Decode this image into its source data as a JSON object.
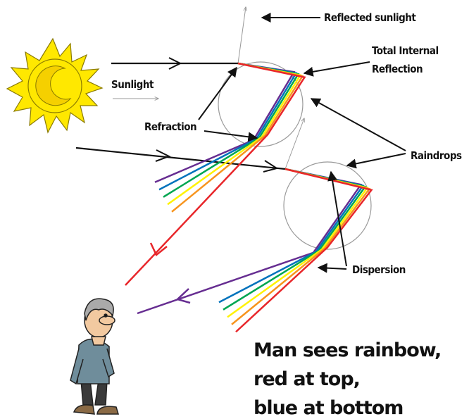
{
  "labels": {
    "reflected": "Reflected sunlight",
    "total_internal_1": "Total Internal",
    "total_internal_2": "Reflection",
    "sunlight": "Sunlight",
    "refraction": "Refraction",
    "raindrops": "Raindrops",
    "dispersion": "Dispersion"
  },
  "caption": [
    "Man sees rainbow,",
    "red at top,",
    "blue at bottom"
  ]
}
